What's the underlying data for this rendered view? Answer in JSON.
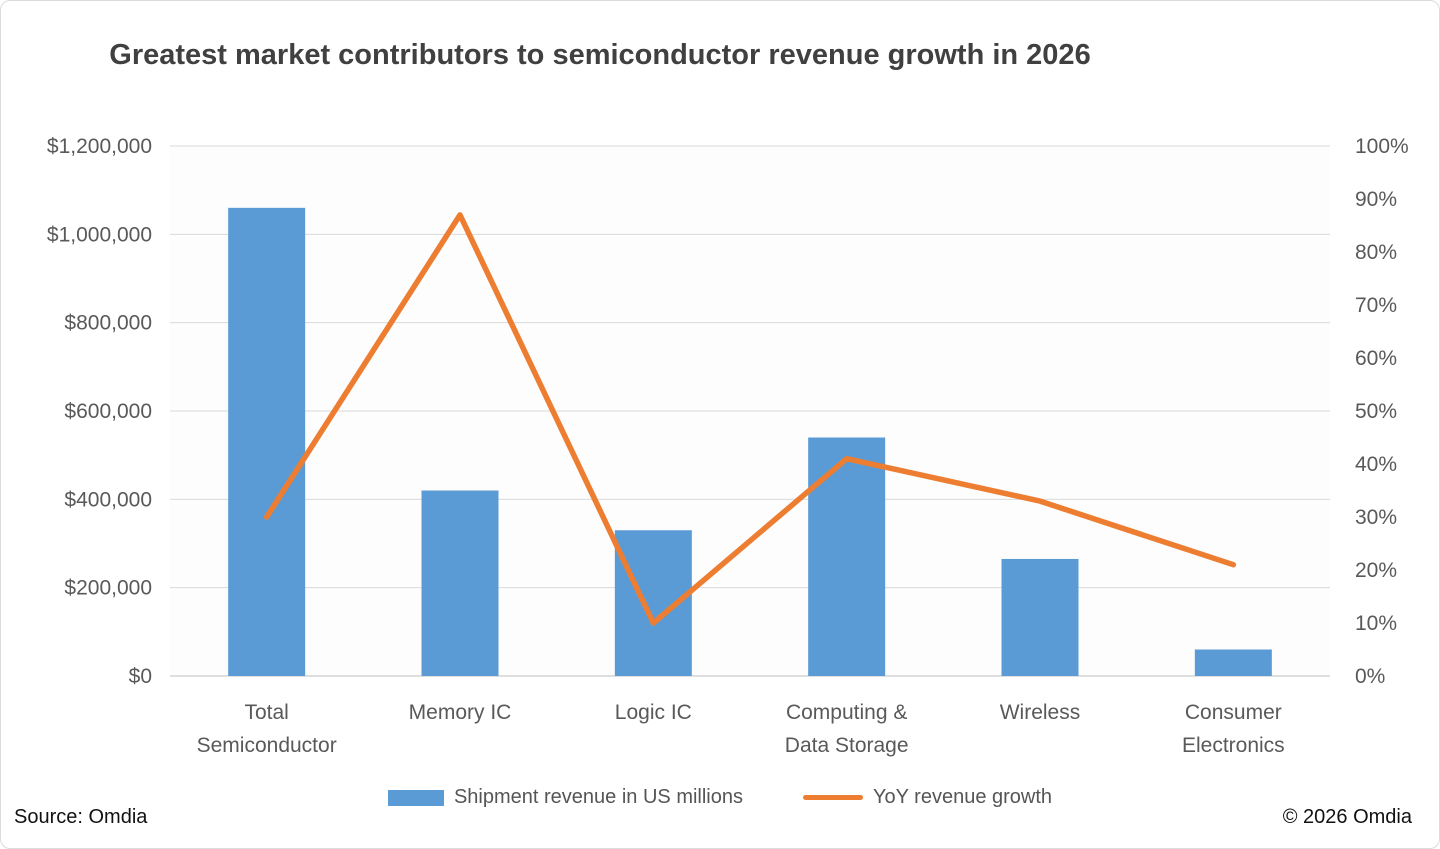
{
  "title": "Greatest market contributors to semiconductor revenue growth in 2026",
  "source": "Source: Omdia",
  "copyright": "© 2026 Omdia",
  "colors": {
    "bar": "#5B9BD5",
    "line": "#ED7D31",
    "grid": "#D9D9D9",
    "axis": "#BFBFBF",
    "text": "#595959",
    "title_text": "#404040"
  },
  "chart_data": {
    "type": "bar+line",
    "title": "Greatest market contributors to semiconductor revenue growth in 2026",
    "categories": [
      "Total Semiconductor",
      "Memory IC",
      "Logic IC",
      "Computing & Data Storage",
      "Wireless",
      "Consumer Electronics"
    ],
    "series": [
      {
        "name": "Shipment revenue in US millions",
        "type": "bar",
        "axis": "left",
        "values": [
          1060000,
          420000,
          330000,
          540000,
          265000,
          60000
        ]
      },
      {
        "name": "YoY revenue growth",
        "type": "line",
        "axis": "right",
        "values": [
          0.3,
          0.87,
          0.1,
          0.41,
          0.33,
          0.21
        ]
      }
    ],
    "left_axis": {
      "min": 0,
      "max": 1200000,
      "step": 200000,
      "format": "currency",
      "tick_labels": [
        "$0",
        "$200,000",
        "$400,000",
        "$600,000",
        "$800,000",
        "$1,000,000",
        "$1,200,000"
      ]
    },
    "right_axis": {
      "min": 0,
      "max": 1,
      "step": 0.1,
      "format": "percent",
      "tick_labels": [
        "0%",
        "10%",
        "20%",
        "30%",
        "40%",
        "50%",
        "60%",
        "70%",
        "80%",
        "90%",
        "100%"
      ]
    },
    "grid": true,
    "legend_position": "bottom"
  },
  "legend": [
    {
      "label": "Shipment revenue in US millions",
      "swatch": "bar"
    },
    {
      "label": "YoY revenue growth",
      "swatch": "line"
    }
  ]
}
